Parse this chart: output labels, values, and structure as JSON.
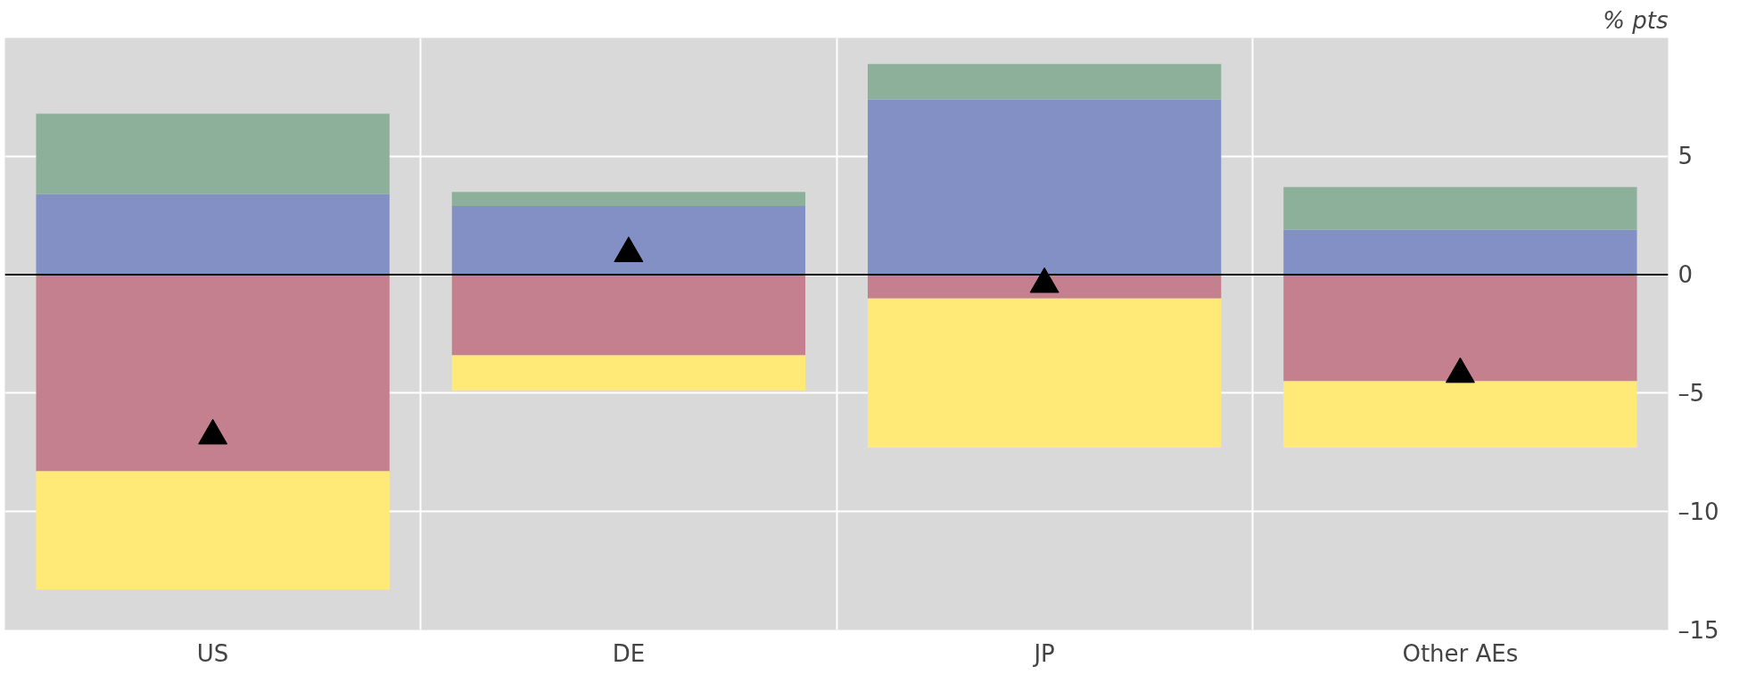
{
  "chart_data": {
    "type": "bar",
    "stacked": true,
    "ylabel": "% pts",
    "categories": [
      "US",
      "DE",
      "JP",
      "Other AEs"
    ],
    "series": [
      {
        "color": "#8290c5",
        "values": [
          3.4,
          2.9,
          7.4,
          1.9
        ]
      },
      {
        "color": "#8db09b",
        "values": [
          3.4,
          0.6,
          1.5,
          1.8
        ]
      },
      {
        "color": "#c4808f",
        "values": [
          -8.3,
          -3.4,
          -1.0,
          -4.5
        ]
      },
      {
        "color": "#ffe977",
        "values": [
          -5.0,
          -1.5,
          -6.3,
          -2.8
        ]
      },
      {
        "type": "scatter",
        "marker": "triangle",
        "color": "#000000",
        "x": [
          "US",
          "DE",
          "JP",
          "Other AEs"
        ],
        "values": [
          -6.8,
          0.9,
          -0.4,
          -4.2
        ]
      }
    ],
    "ylim": [
      -15,
      10
    ],
    "yticks": [
      5,
      0,
      {
        "value": -5,
        "label": "–5"
      },
      {
        "value": -10,
        "label": "–10"
      },
      {
        "value": -15,
        "label": "–15"
      }
    ],
    "grid": true,
    "ref_lines": [
      {
        "axis": "y",
        "value": 0,
        "color": "#000000"
      }
    ]
  }
}
